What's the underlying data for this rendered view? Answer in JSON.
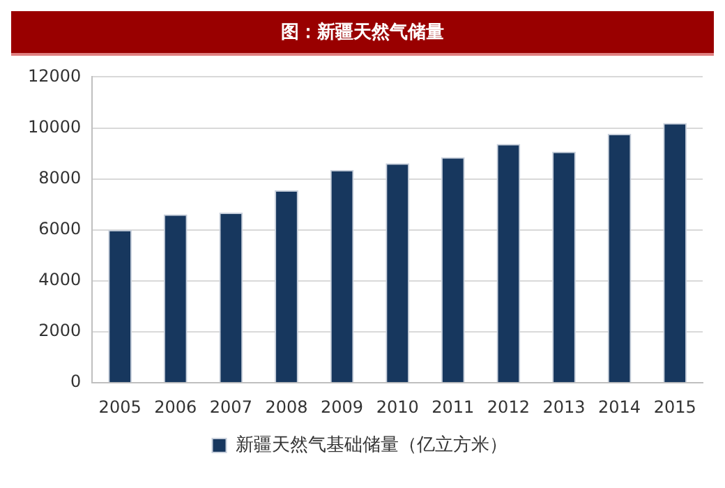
{
  "chart_data": {
    "type": "bar",
    "title": "图：新疆天然气储量",
    "categories": [
      "2005",
      "2006",
      "2007",
      "2008",
      "2009",
      "2010",
      "2011",
      "2012",
      "2013",
      "2014",
      "2015"
    ],
    "series": [
      {
        "name": "新疆天然气基础储量（亿立方米）",
        "color": "#17375e",
        "values": [
          6000,
          6610,
          6680,
          7550,
          8350,
          8610,
          8850,
          9370,
          9070,
          9770,
          10190
        ]
      }
    ],
    "ylim": [
      0,
      12000
    ],
    "yticks": [
      0,
      2000,
      4000,
      6000,
      8000,
      10000,
      12000
    ],
    "grid": "y",
    "legend": "bottom"
  }
}
